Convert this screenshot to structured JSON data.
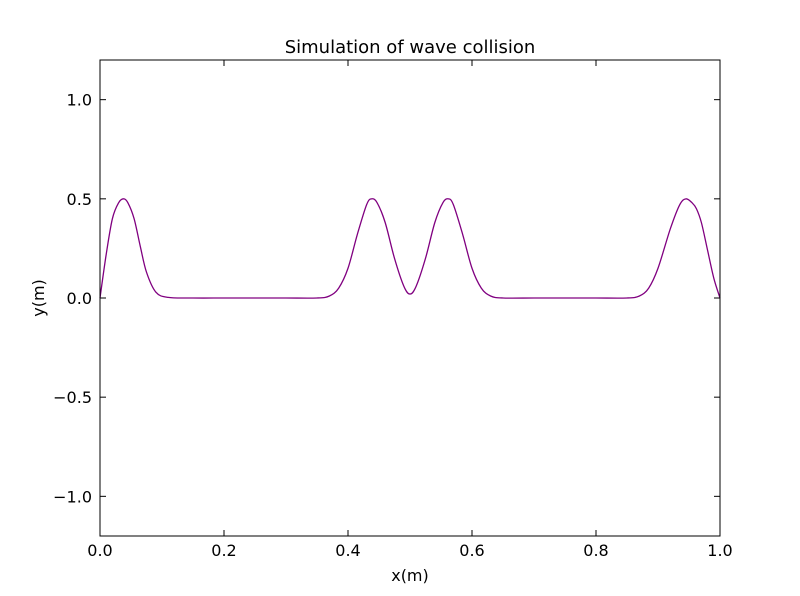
{
  "chart_data": {
    "type": "line",
    "title": "Simulation of wave collision",
    "xlabel": "x(m)",
    "ylabel": "y(m)",
    "xlim": [
      0.0,
      1.0
    ],
    "ylim": [
      -1.2,
      1.2
    ],
    "x_ticks": [
      0.0,
      0.2,
      0.4,
      0.6,
      0.8,
      1.0
    ],
    "x_tick_labels": [
      "0.0",
      "0.2",
      "0.4",
      "0.6",
      "0.8",
      "1.0"
    ],
    "y_ticks": [
      -1.0,
      -0.5,
      0.0,
      0.5,
      1.0
    ],
    "y_tick_labels": [
      "−1.0",
      "−0.5",
      "0.0",
      "0.5",
      "1.0"
    ],
    "grid": false,
    "series": [
      {
        "color": "#800080",
        "x": [
          0.0,
          0.01,
          0.02,
          0.03,
          0.038,
          0.045,
          0.055,
          0.065,
          0.075,
          0.09,
          0.11,
          0.15,
          0.2,
          0.25,
          0.3,
          0.35,
          0.37,
          0.385,
          0.4,
          0.415,
          0.43,
          0.438,
          0.447,
          0.46,
          0.475,
          0.49,
          0.5,
          0.51,
          0.525,
          0.54,
          0.553,
          0.562,
          0.57,
          0.585,
          0.6,
          0.615,
          0.63,
          0.65,
          0.7,
          0.75,
          0.8,
          0.85,
          0.87,
          0.885,
          0.9,
          0.92,
          0.935,
          0.945,
          0.955,
          0.962,
          0.97,
          0.98,
          0.99,
          1.0
        ],
        "y": [
          0.0,
          0.22,
          0.4,
          0.48,
          0.5,
          0.48,
          0.4,
          0.26,
          0.13,
          0.03,
          0.003,
          0.0,
          0.0,
          0.0,
          0.0,
          0.0,
          0.01,
          0.05,
          0.15,
          0.32,
          0.47,
          0.5,
          0.48,
          0.38,
          0.2,
          0.06,
          0.02,
          0.06,
          0.2,
          0.38,
          0.48,
          0.5,
          0.47,
          0.32,
          0.15,
          0.05,
          0.01,
          0.0,
          0.0,
          0.0,
          0.0,
          0.0,
          0.01,
          0.05,
          0.15,
          0.35,
          0.47,
          0.5,
          0.48,
          0.45,
          0.38,
          0.24,
          0.1,
          0.0
        ]
      }
    ]
  }
}
